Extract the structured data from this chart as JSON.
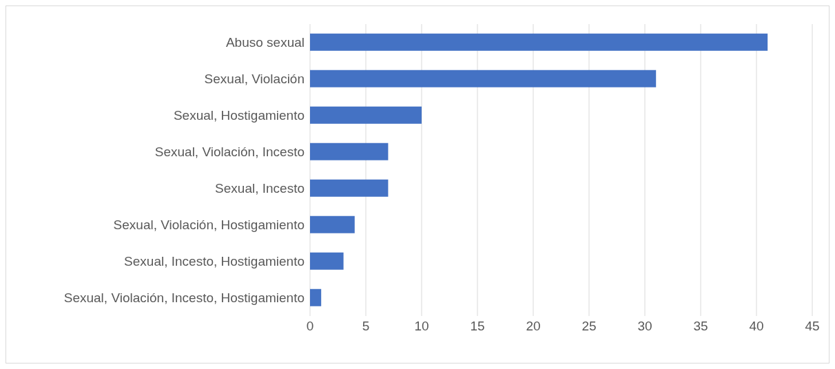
{
  "chart_data": {
    "type": "bar",
    "orientation": "horizontal",
    "categories": [
      "Abuso sexual",
      "Sexual, Violación",
      "Sexual, Hostigamiento",
      "Sexual, Violación, Incesto",
      "Sexual, Incesto",
      "Sexual, Violación, Hostigamiento",
      "Sexual, Incesto, Hostigamiento",
      "Sexual, Violación, Incesto, Hostigamiento"
    ],
    "values": [
      41,
      31,
      10,
      7,
      7,
      4,
      3,
      1
    ],
    "color": "#4472c4",
    "xlim": [
      0,
      45
    ],
    "xticks": [
      0,
      5,
      10,
      15,
      20,
      25,
      30,
      35,
      40,
      45
    ],
    "grid": "x",
    "legend": false
  }
}
